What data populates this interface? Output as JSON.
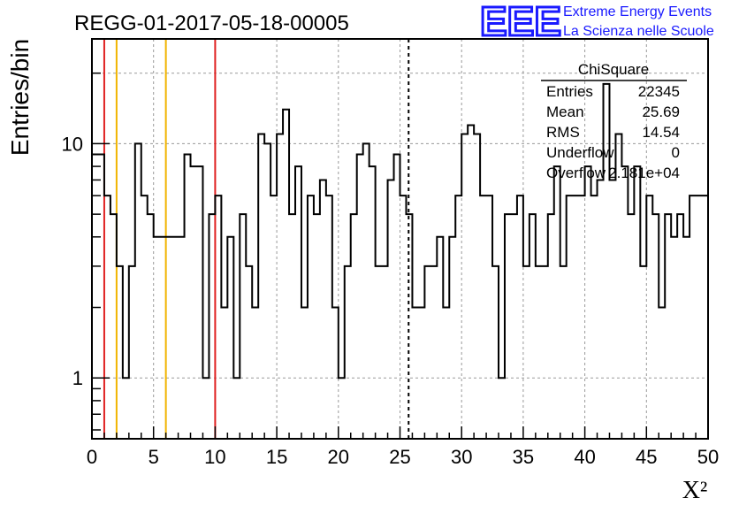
{
  "chart_data": {
    "type": "histogram",
    "title": "REGG-01-2017-05-18-00005",
    "xlabel": "X²",
    "ylabel": "Entries/bin",
    "xlim": [
      0,
      50
    ],
    "ylim": [
      0.55,
      28
    ],
    "yscale": "log",
    "grid": true,
    "x_ticks": [
      "0",
      "5",
      "10",
      "15",
      "20",
      "25",
      "30",
      "35",
      "40",
      "45",
      "50"
    ],
    "y_ticks": [
      "1",
      "10"
    ],
    "bin_width": 0.5,
    "bins": [
      [
        0.0,
        9
      ],
      [
        0.5,
        9
      ],
      [
        1.0,
        6
      ],
      [
        1.5,
        5
      ],
      [
        2.0,
        3
      ],
      [
        2.5,
        1
      ],
      [
        3.0,
        3
      ],
      [
        3.5,
        10
      ],
      [
        4.0,
        6
      ],
      [
        4.5,
        5
      ],
      [
        5.0,
        4
      ],
      [
        5.5,
        4
      ],
      [
        6.0,
        4
      ],
      [
        6.5,
        4
      ],
      [
        7.0,
        4
      ],
      [
        7.5,
        9
      ],
      [
        8.0,
        8
      ],
      [
        8.5,
        8
      ],
      [
        9.0,
        1
      ],
      [
        9.5,
        5
      ],
      [
        10.0,
        6
      ],
      [
        10.5,
        2
      ],
      [
        11.0,
        4
      ],
      [
        11.5,
        1
      ],
      [
        12.0,
        5
      ],
      [
        12.5,
        3
      ],
      [
        13.0,
        2
      ],
      [
        13.5,
        11
      ],
      [
        14.0,
        10
      ],
      [
        14.5,
        6
      ],
      [
        15.0,
        11
      ],
      [
        15.5,
        14
      ],
      [
        16.0,
        5
      ],
      [
        16.5,
        8
      ],
      [
        17.0,
        2
      ],
      [
        17.5,
        6
      ],
      [
        18.0,
        5
      ],
      [
        18.5,
        7
      ],
      [
        19.0,
        6
      ],
      [
        19.5,
        2
      ],
      [
        20.0,
        1
      ],
      [
        20.5,
        3
      ],
      [
        21.0,
        5
      ],
      [
        21.5,
        9
      ],
      [
        22.0,
        10
      ],
      [
        22.5,
        8
      ],
      [
        23.0,
        3
      ],
      [
        23.5,
        3
      ],
      [
        24.0,
        7
      ],
      [
        24.5,
        9
      ],
      [
        25.0,
        6
      ],
      [
        25.5,
        5
      ],
      [
        26.0,
        2
      ],
      [
        26.5,
        2
      ],
      [
        27.0,
        3
      ],
      [
        27.5,
        3
      ],
      [
        28.0,
        4
      ],
      [
        28.5,
        2
      ],
      [
        29.0,
        4
      ],
      [
        29.5,
        6
      ],
      [
        30.0,
        11
      ],
      [
        30.5,
        12
      ],
      [
        31.0,
        11
      ],
      [
        31.5,
        6
      ],
      [
        32.0,
        6
      ],
      [
        32.5,
        3
      ],
      [
        33.0,
        1
      ],
      [
        33.5,
        5
      ],
      [
        34.0,
        5
      ],
      [
        34.5,
        6
      ],
      [
        35.0,
        3
      ],
      [
        35.5,
        5
      ],
      [
        36.0,
        3
      ],
      [
        36.5,
        3
      ],
      [
        37.0,
        5
      ],
      [
        37.5,
        8
      ],
      [
        38.0,
        3
      ],
      [
        38.5,
        6
      ],
      [
        39.0,
        6
      ],
      [
        39.5,
        6
      ],
      [
        40.0,
        8
      ],
      [
        40.5,
        6
      ],
      [
        41.0,
        7
      ],
      [
        41.5,
        18
      ],
      [
        42.0,
        7
      ],
      [
        42.5,
        11
      ],
      [
        43.0,
        8
      ],
      [
        43.5,
        5
      ],
      [
        44.0,
        8
      ],
      [
        44.5,
        3
      ],
      [
        45.0,
        6
      ],
      [
        45.5,
        5
      ],
      [
        46.0,
        2
      ],
      [
        46.5,
        5
      ],
      [
        47.0,
        4
      ],
      [
        47.5,
        5
      ],
      [
        48.0,
        4
      ],
      [
        48.5,
        6
      ],
      [
        49.0,
        6
      ],
      [
        49.5,
        6
      ]
    ],
    "vertical_lines": [
      {
        "x": 1.0,
        "color": "#e02020",
        "style": "solid"
      },
      {
        "x": 2.0,
        "color": "#f0b400",
        "style": "solid"
      },
      {
        "x": 6.0,
        "color": "#f0b400",
        "style": "solid"
      },
      {
        "x": 10.0,
        "color": "#e02020",
        "style": "solid"
      },
      {
        "x": 25.7,
        "color": "#000000",
        "style": "dashed"
      }
    ],
    "stats_box": {
      "title": "ChiSquare",
      "rows": [
        {
          "label": "Entries",
          "value": "22345"
        },
        {
          "label": "Mean",
          "value": "25.69"
        },
        {
          "label": "RMS",
          "value": "14.54"
        },
        {
          "label": "Underflow",
          "value": "0"
        },
        {
          "label": "Overflow",
          "value": "2.181e+04"
        }
      ]
    },
    "logo": {
      "big": "EEE",
      "line1": "Extreme Energy Events",
      "line2": "La Scienza nelle Scuole",
      "color": "#1a1aff"
    }
  }
}
